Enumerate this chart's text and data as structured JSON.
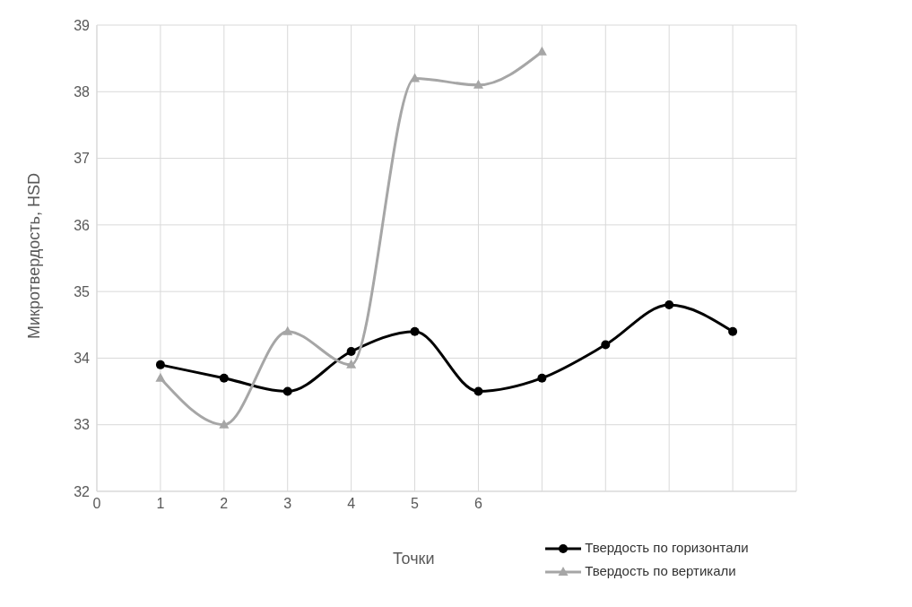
{
  "chart_data": {
    "type": "line",
    "ylabel": "Микротвердость, HSD",
    "xlabel": "Точки",
    "x": [
      1,
      2,
      3,
      4,
      5,
      6,
      7,
      8,
      9,
      10
    ],
    "series": [
      {
        "name": "Твердость по горизонтали",
        "color": "#000000",
        "marker": "circle",
        "values": [
          33.9,
          33.7,
          33.5,
          34.1,
          34.4,
          33.5,
          33.7,
          34.2,
          34.8,
          34.4
        ]
      },
      {
        "name": "Твердость по вертикали",
        "color": "#a6a6a6",
        "marker": "triangle",
        "values": [
          33.7,
          33.0,
          34.4,
          33.9,
          38.2,
          38.1,
          38.6,
          null,
          null,
          null
        ]
      }
    ],
    "xlim": [
      0,
      11
    ],
    "xticks": [
      0,
      1,
      2,
      3,
      4,
      5,
      6,
      {
        "value": 7,
        "label": null
      },
      {
        "value": 8,
        "label": null
      },
      {
        "value": 9,
        "label": null
      },
      {
        "value": 10,
        "label": null
      },
      {
        "value": 11,
        "label": null
      }
    ],
    "ylim": [
      32,
      39
    ],
    "yticks": [
      32,
      33,
      34,
      35,
      36,
      37,
      38,
      39
    ],
    "grid": true,
    "legend": "bottom right",
    "line_style": "solid"
  }
}
